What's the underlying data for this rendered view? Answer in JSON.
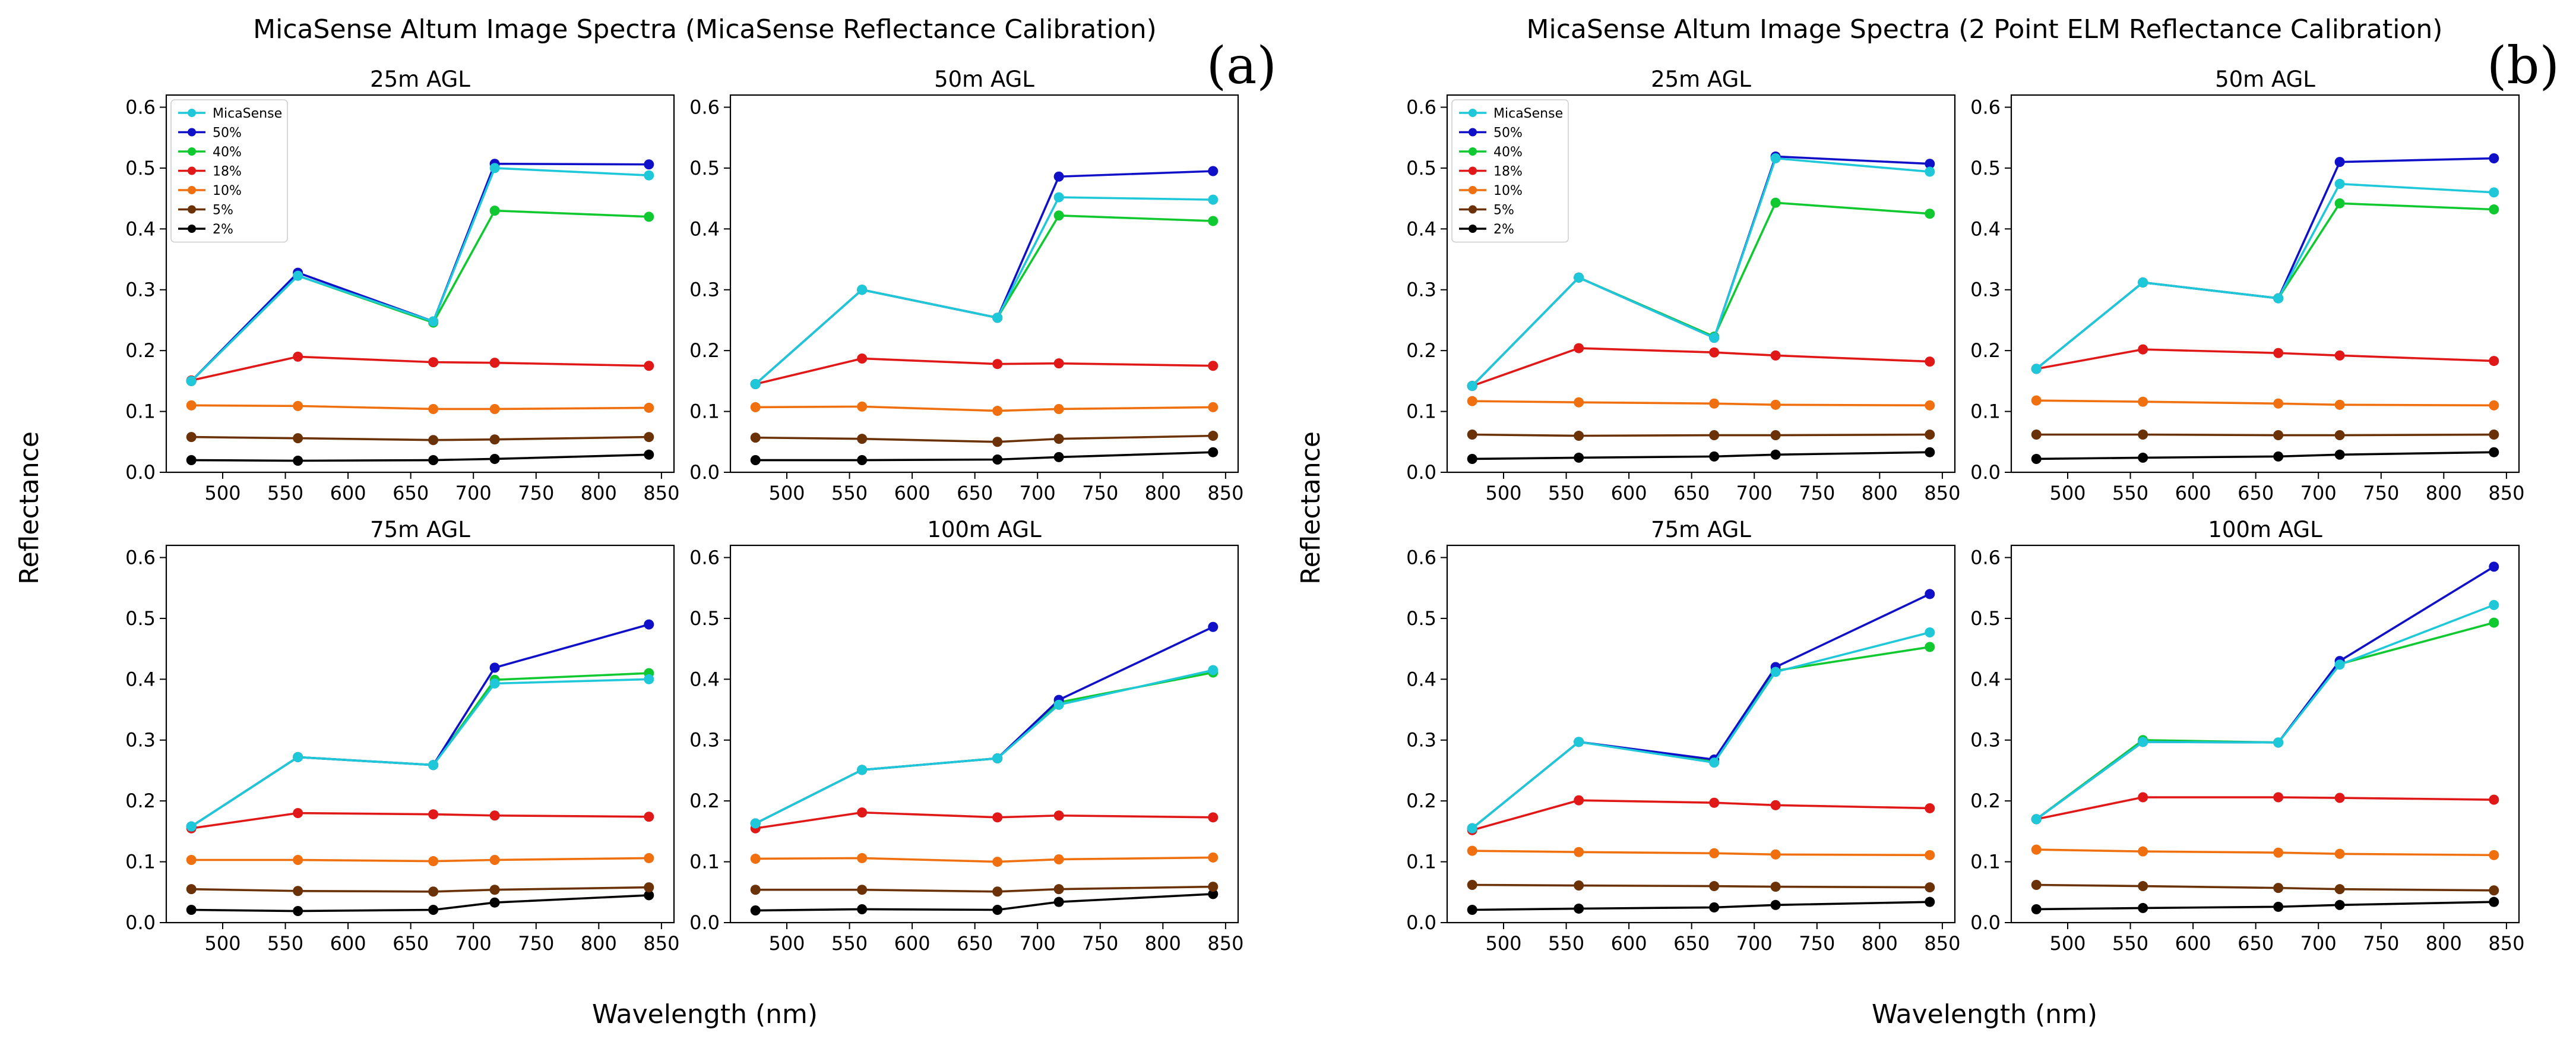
{
  "figures": [
    {
      "title": "MicaSense Altum Image Spectra (MicaSense Reflectance Calibration)",
      "panel_label": "(a)",
      "xlabel": "Wavelength (nm)",
      "ylabel": "Reflectance"
    },
    {
      "title": "MicaSense Altum Image Spectra (2 Point ELM Reflectance Calibration)",
      "panel_label": "(b)",
      "xlabel": "Wavelength (nm)",
      "ylabel": "Reflectance"
    }
  ],
  "series_styles": [
    {
      "name": "MicaSense",
      "color": "#1ec8d8"
    },
    {
      "name": "50%",
      "color": "#1010c8"
    },
    {
      "name": "40%",
      "color": "#10c830"
    },
    {
      "name": "18%",
      "color": "#e01818"
    },
    {
      "name": "10%",
      "color": "#f07010"
    },
    {
      "name": "5%",
      "color": "#6b3208"
    },
    {
      "name": "2%",
      "color": "#000000"
    }
  ],
  "chart_data": [
    {
      "type": "line",
      "figure": 0,
      "title": "25m AGL",
      "legend": "top-left",
      "x": [
        475,
        560,
        668,
        717,
        840
      ],
      "xticks": [
        500,
        550,
        600,
        650,
        700,
        750,
        800,
        850
      ],
      "xlim": [
        455,
        860
      ],
      "ylim": [
        0,
        0.62
      ],
      "yticks": [
        0.0,
        0.1,
        0.2,
        0.3,
        0.4,
        0.5,
        0.6
      ],
      "yticklabels": [
        "0.0",
        "0.1",
        "0.2",
        "0.3",
        "0.4",
        "0.5",
        "0.6"
      ],
      "series": [
        {
          "name": "MicaSense",
          "values": [
            0.15,
            0.323,
            0.248,
            0.5,
            0.488
          ]
        },
        {
          "name": "50%",
          "values": [
            0.15,
            0.328,
            0.248,
            0.507,
            0.506
          ]
        },
        {
          "name": "40%",
          "values": [
            0.15,
            0.323,
            0.246,
            0.43,
            0.42
          ]
        },
        {
          "name": "18%",
          "values": [
            0.151,
            0.19,
            0.181,
            0.18,
            0.175
          ]
        },
        {
          "name": "10%",
          "values": [
            0.11,
            0.109,
            0.104,
            0.104,
            0.106
          ]
        },
        {
          "name": "5%",
          "values": [
            0.058,
            0.056,
            0.053,
            0.054,
            0.058
          ]
        },
        {
          "name": "2%",
          "values": [
            0.02,
            0.019,
            0.02,
            0.022,
            0.029
          ]
        }
      ]
    },
    {
      "type": "line",
      "figure": 0,
      "title": "50m AGL",
      "x": [
        475,
        560,
        668,
        717,
        840
      ],
      "xticks": [
        500,
        550,
        600,
        650,
        700,
        750,
        800,
        850
      ],
      "xlim": [
        455,
        860
      ],
      "ylim": [
        0,
        0.62
      ],
      "yticks": [
        0.0,
        0.1,
        0.2,
        0.3,
        0.4,
        0.5,
        0.6
      ],
      "yticklabels": [
        "0.0",
        "0.1",
        "0.2",
        "0.3",
        "0.4",
        "0.5",
        "0.6"
      ],
      "series": [
        {
          "name": "MicaSense",
          "values": [
            0.145,
            0.3,
            0.254,
            0.452,
            0.448
          ]
        },
        {
          "name": "50%",
          "values": [
            0.145,
            0.3,
            0.254,
            0.486,
            0.495
          ]
        },
        {
          "name": "40%",
          "values": [
            0.145,
            0.3,
            0.254,
            0.422,
            0.413
          ]
        },
        {
          "name": "18%",
          "values": [
            0.145,
            0.187,
            0.178,
            0.179,
            0.175
          ]
        },
        {
          "name": "10%",
          "values": [
            0.107,
            0.108,
            0.101,
            0.104,
            0.107
          ]
        },
        {
          "name": "5%",
          "values": [
            0.057,
            0.055,
            0.05,
            0.055,
            0.06
          ]
        },
        {
          "name": "2%",
          "values": [
            0.02,
            0.02,
            0.021,
            0.025,
            0.033
          ]
        }
      ]
    },
    {
      "type": "line",
      "figure": 0,
      "title": "75m AGL",
      "x": [
        475,
        560,
        668,
        717,
        840
      ],
      "xticks": [
        500,
        550,
        600,
        650,
        700,
        750,
        800,
        850
      ],
      "xlim": [
        455,
        860
      ],
      "ylim": [
        0,
        0.62
      ],
      "yticks": [
        0.0,
        0.1,
        0.2,
        0.3,
        0.4,
        0.5,
        0.6
      ],
      "yticklabels": [
        "0.0",
        "0.1",
        "0.2",
        "0.3",
        "0.4",
        "0.5",
        "0.6"
      ],
      "series": [
        {
          "name": "MicaSense",
          "values": [
            0.158,
            0.272,
            0.259,
            0.393,
            0.4
          ]
        },
        {
          "name": "50%",
          "values": [
            0.158,
            0.272,
            0.259,
            0.419,
            0.49
          ]
        },
        {
          "name": "40%",
          "values": [
            0.158,
            0.272,
            0.259,
            0.399,
            0.41
          ]
        },
        {
          "name": "18%",
          "values": [
            0.155,
            0.18,
            0.178,
            0.176,
            0.174
          ]
        },
        {
          "name": "10%",
          "values": [
            0.103,
            0.103,
            0.101,
            0.103,
            0.106
          ]
        },
        {
          "name": "5%",
          "values": [
            0.055,
            0.052,
            0.051,
            0.054,
            0.058
          ]
        },
        {
          "name": "2%",
          "values": [
            0.021,
            0.019,
            0.021,
            0.033,
            0.045
          ]
        }
      ]
    },
    {
      "type": "line",
      "figure": 0,
      "title": "100m AGL",
      "x": [
        475,
        560,
        668,
        717,
        840
      ],
      "xticks": [
        500,
        550,
        600,
        650,
        700,
        750,
        800,
        850
      ],
      "xlim": [
        455,
        860
      ],
      "ylim": [
        0,
        0.62
      ],
      "yticks": [
        0.0,
        0.1,
        0.2,
        0.3,
        0.4,
        0.5,
        0.6
      ],
      "yticklabels": [
        "0.0",
        "0.1",
        "0.2",
        "0.3",
        "0.4",
        "0.5",
        "0.6"
      ],
      "series": [
        {
          "name": "MicaSense",
          "values": [
            0.163,
            0.251,
            0.27,
            0.358,
            0.415
          ]
        },
        {
          "name": "50%",
          "values": [
            0.163,
            0.251,
            0.27,
            0.366,
            0.486
          ]
        },
        {
          "name": "40%",
          "values": [
            0.163,
            0.251,
            0.27,
            0.362,
            0.411
          ]
        },
        {
          "name": "18%",
          "values": [
            0.155,
            0.181,
            0.173,
            0.176,
            0.173
          ]
        },
        {
          "name": "10%",
          "values": [
            0.105,
            0.106,
            0.1,
            0.104,
            0.107
          ]
        },
        {
          "name": "5%",
          "values": [
            0.054,
            0.054,
            0.051,
            0.055,
            0.059
          ]
        },
        {
          "name": "2%",
          "values": [
            0.02,
            0.022,
            0.021,
            0.034,
            0.047
          ]
        }
      ]
    },
    {
      "type": "line",
      "figure": 1,
      "title": "25m AGL",
      "legend": "top-left",
      "x": [
        475,
        560,
        668,
        717,
        840
      ],
      "xticks": [
        500,
        550,
        600,
        650,
        700,
        750,
        800,
        850
      ],
      "xlim": [
        455,
        860
      ],
      "ylim": [
        0,
        0.62
      ],
      "yticks": [
        0.0,
        0.1,
        0.2,
        0.3,
        0.4,
        0.5,
        0.6
      ],
      "yticklabels": [
        "0.0",
        "0.1",
        "0.2",
        "0.3",
        "0.4",
        "0.5",
        "0.6"
      ],
      "series": [
        {
          "name": "MicaSense",
          "values": [
            0.142,
            0.32,
            0.221,
            0.516,
            0.494
          ]
        },
        {
          "name": "50%",
          "values": [
            0.142,
            0.32,
            0.221,
            0.519,
            0.507
          ]
        },
        {
          "name": "40%",
          "values": [
            0.142,
            0.32,
            0.223,
            0.443,
            0.425
          ]
        },
        {
          "name": "18%",
          "values": [
            0.142,
            0.204,
            0.197,
            0.192,
            0.182
          ]
        },
        {
          "name": "10%",
          "values": [
            0.117,
            0.115,
            0.113,
            0.111,
            0.11
          ]
        },
        {
          "name": "5%",
          "values": [
            0.062,
            0.06,
            0.061,
            0.061,
            0.062
          ]
        },
        {
          "name": "2%",
          "values": [
            0.022,
            0.024,
            0.026,
            0.029,
            0.033
          ]
        }
      ]
    },
    {
      "type": "line",
      "figure": 1,
      "title": "50m AGL",
      "x": [
        475,
        560,
        668,
        717,
        840
      ],
      "xticks": [
        500,
        550,
        600,
        650,
        700,
        750,
        800,
        850
      ],
      "xlim": [
        455,
        860
      ],
      "ylim": [
        0,
        0.62
      ],
      "yticks": [
        0.0,
        0.1,
        0.2,
        0.3,
        0.4,
        0.5,
        0.6
      ],
      "yticklabels": [
        "0.0",
        "0.1",
        "0.2",
        "0.3",
        "0.4",
        "0.5",
        "0.6"
      ],
      "series": [
        {
          "name": "MicaSense",
          "values": [
            0.17,
            0.312,
            0.286,
            0.474,
            0.46
          ]
        },
        {
          "name": "50%",
          "values": [
            0.17,
            0.312,
            0.286,
            0.51,
            0.516
          ]
        },
        {
          "name": "40%",
          "values": [
            0.17,
            0.312,
            0.286,
            0.442,
            0.432
          ]
        },
        {
          "name": "18%",
          "values": [
            0.17,
            0.202,
            0.196,
            0.192,
            0.183
          ]
        },
        {
          "name": "10%",
          "values": [
            0.118,
            0.116,
            0.113,
            0.111,
            0.11
          ]
        },
        {
          "name": "5%",
          "values": [
            0.062,
            0.062,
            0.061,
            0.061,
            0.062
          ]
        },
        {
          "name": "2%",
          "values": [
            0.022,
            0.024,
            0.026,
            0.029,
            0.033
          ]
        }
      ]
    },
    {
      "type": "line",
      "figure": 1,
      "title": "75m AGL",
      "x": [
        475,
        560,
        668,
        717,
        840
      ],
      "xticks": [
        500,
        550,
        600,
        650,
        700,
        750,
        800,
        850
      ],
      "xlim": [
        455,
        860
      ],
      "ylim": [
        0,
        0.62
      ],
      "yticks": [
        0.0,
        0.1,
        0.2,
        0.3,
        0.4,
        0.5,
        0.6
      ],
      "yticklabels": [
        "0.0",
        "0.1",
        "0.2",
        "0.3",
        "0.4",
        "0.5",
        "0.6"
      ],
      "series": [
        {
          "name": "MicaSense",
          "values": [
            0.155,
            0.297,
            0.263,
            0.412,
            0.477
          ]
        },
        {
          "name": "50%",
          "values": [
            0.155,
            0.297,
            0.268,
            0.42,
            0.54
          ]
        },
        {
          "name": "40%",
          "values": [
            0.155,
            0.297,
            0.265,
            0.414,
            0.453
          ]
        },
        {
          "name": "18%",
          "values": [
            0.152,
            0.201,
            0.197,
            0.193,
            0.188
          ]
        },
        {
          "name": "10%",
          "values": [
            0.118,
            0.116,
            0.114,
            0.112,
            0.111
          ]
        },
        {
          "name": "5%",
          "values": [
            0.062,
            0.061,
            0.06,
            0.059,
            0.058
          ]
        },
        {
          "name": "2%",
          "values": [
            0.021,
            0.023,
            0.025,
            0.029,
            0.034
          ]
        }
      ]
    },
    {
      "type": "line",
      "figure": 1,
      "title": "100m AGL",
      "x": [
        475,
        560,
        668,
        717,
        840
      ],
      "xticks": [
        500,
        550,
        600,
        650,
        700,
        750,
        800,
        850
      ],
      "xlim": [
        455,
        860
      ],
      "ylim": [
        0,
        0.62
      ],
      "yticks": [
        0.0,
        0.1,
        0.2,
        0.3,
        0.4,
        0.5,
        0.6
      ],
      "yticklabels": [
        "0.0",
        "0.1",
        "0.2",
        "0.3",
        "0.4",
        "0.5",
        "0.6"
      ],
      "series": [
        {
          "name": "MicaSense",
          "values": [
            0.17,
            0.297,
            0.296,
            0.424,
            0.522
          ]
        },
        {
          "name": "50%",
          "values": [
            0.17,
            0.297,
            0.296,
            0.43,
            0.585
          ]
        },
        {
          "name": "40%",
          "values": [
            0.17,
            0.3,
            0.296,
            0.425,
            0.493
          ]
        },
        {
          "name": "18%",
          "values": [
            0.17,
            0.206,
            0.206,
            0.205,
            0.202
          ]
        },
        {
          "name": "10%",
          "values": [
            0.12,
            0.117,
            0.115,
            0.113,
            0.111
          ]
        },
        {
          "name": "5%",
          "values": [
            0.062,
            0.06,
            0.057,
            0.055,
            0.053
          ]
        },
        {
          "name": "2%",
          "values": [
            0.022,
            0.024,
            0.026,
            0.029,
            0.034
          ]
        }
      ]
    }
  ]
}
